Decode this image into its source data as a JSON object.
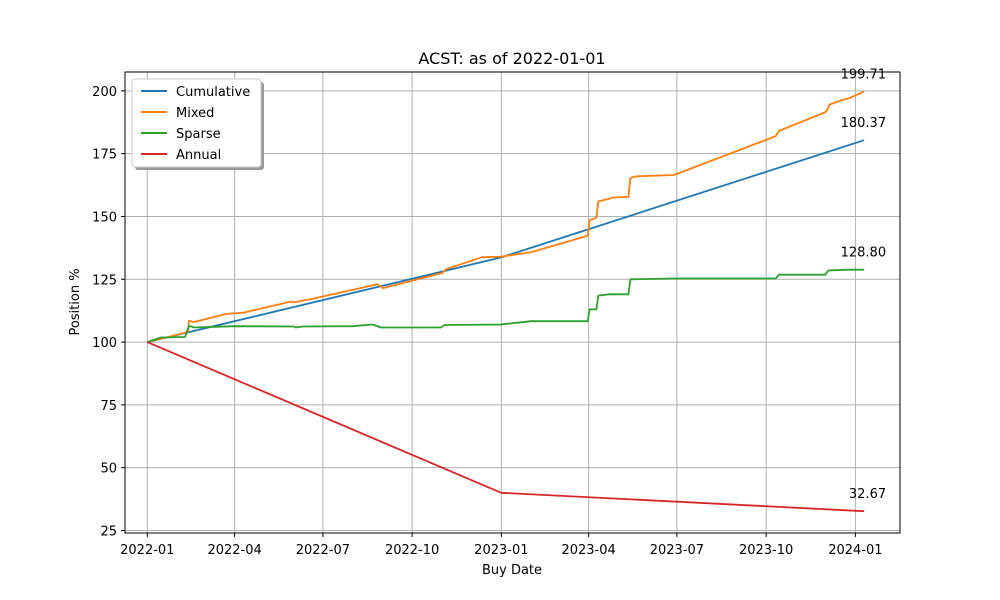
{
  "chart_data": {
    "type": "line",
    "title": "ACST: as of 2022-01-01",
    "xlabel": "Buy Date",
    "ylabel": "Position %",
    "xlim": [
      "2021-12-09",
      "2024-02-16"
    ],
    "ylim": [
      24,
      207.5
    ],
    "grid": true,
    "legend_position": "top-left",
    "x_ticks": [
      "2022-01",
      "2022-04",
      "2022-07",
      "2022-10",
      "2023-01",
      "2023-04",
      "2023-07",
      "2023-10",
      "2024-01"
    ],
    "y_ticks": [
      25,
      50,
      75,
      100,
      125,
      150,
      175,
      200
    ],
    "series": [
      {
        "name": "Cumulative",
        "color": "#1f77b4",
        "end_label": "180.37",
        "points": [
          [
            "2022-01-01",
            100
          ],
          [
            "2023-01-01",
            133.7
          ],
          [
            "2024-01-10",
            180.37
          ]
        ]
      },
      {
        "name": "Mixed",
        "color": "#ff7f0e",
        "end_label": "199.71",
        "points": [
          [
            "2022-01-01",
            100
          ],
          [
            "2022-02-12",
            104
          ],
          [
            "2022-02-13",
            108.5
          ],
          [
            "2022-02-18",
            108
          ],
          [
            "2022-03-24",
            111.2
          ],
          [
            "2022-04-10",
            111.7
          ],
          [
            "2022-05-30",
            116.2
          ],
          [
            "2022-06-01",
            115.8
          ],
          [
            "2022-06-20",
            117.2
          ],
          [
            "2022-08-15",
            122
          ],
          [
            "2022-08-26",
            123
          ],
          [
            "2022-09-01",
            121.5
          ],
          [
            "2022-11-01",
            127.5
          ],
          [
            "2022-11-05",
            129
          ],
          [
            "2022-12-12",
            133.8
          ],
          [
            "2023-01-01",
            134
          ],
          [
            "2023-02-01",
            135.8
          ],
          [
            "2023-03-31",
            142.3
          ],
          [
            "2023-04-02",
            148.5
          ],
          [
            "2023-04-09",
            149.5
          ],
          [
            "2023-04-11",
            156
          ],
          [
            "2023-04-22",
            157
          ],
          [
            "2023-04-25",
            157.5
          ],
          [
            "2023-05-12",
            157.8
          ],
          [
            "2023-05-14",
            165.3
          ],
          [
            "2023-05-20",
            166
          ],
          [
            "2023-06-28",
            166.5
          ],
          [
            "2023-10-11",
            182
          ],
          [
            "2023-10-14",
            184
          ],
          [
            "2023-12-01",
            191.5
          ],
          [
            "2023-12-04",
            193
          ],
          [
            "2023-12-05",
            194.5
          ],
          [
            "2023-12-20",
            196.5
          ],
          [
            "2023-12-25",
            197
          ],
          [
            "2024-01-10",
            199.71
          ]
        ]
      },
      {
        "name": "Sparse",
        "color": "#2ca02c",
        "end_label": "128.80",
        "points": [
          [
            "2022-01-01",
            100
          ],
          [
            "2022-01-15",
            101.8
          ],
          [
            "2022-02-09",
            102
          ],
          [
            "2022-02-13",
            106.5
          ],
          [
            "2022-02-18",
            105.8
          ],
          [
            "2022-04-01",
            106.3
          ],
          [
            "2022-06-01",
            106.2
          ],
          [
            "2022-06-03",
            105.8
          ],
          [
            "2022-06-10",
            106.2
          ],
          [
            "2022-08-01",
            106.3
          ],
          [
            "2022-08-21",
            107
          ],
          [
            "2022-08-30",
            105.8
          ],
          [
            "2022-10-31",
            105.8
          ],
          [
            "2022-11-03",
            106.8
          ],
          [
            "2022-12-31",
            107
          ],
          [
            "2023-02-01",
            108.3
          ],
          [
            "2023-03-31",
            108.3
          ],
          [
            "2023-04-02",
            113
          ],
          [
            "2023-04-09",
            113
          ],
          [
            "2023-04-11",
            118.5
          ],
          [
            "2023-04-22",
            119
          ],
          [
            "2023-05-12",
            119
          ],
          [
            "2023-05-14",
            125
          ],
          [
            "2023-06-28",
            125.3
          ],
          [
            "2023-10-11",
            125.3
          ],
          [
            "2023-10-14",
            126.8
          ],
          [
            "2023-12-01",
            126.8
          ],
          [
            "2023-12-04",
            128.5
          ],
          [
            "2023-12-25",
            128.8
          ],
          [
            "2024-01-10",
            128.8
          ]
        ]
      },
      {
        "name": "Annual",
        "color": "#d62728",
        "end_label": "32.67",
        "points": [
          [
            "2022-01-01",
            100
          ],
          [
            "2023-01-01",
            40
          ],
          [
            "2024-01-10",
            32.67
          ]
        ]
      }
    ]
  }
}
